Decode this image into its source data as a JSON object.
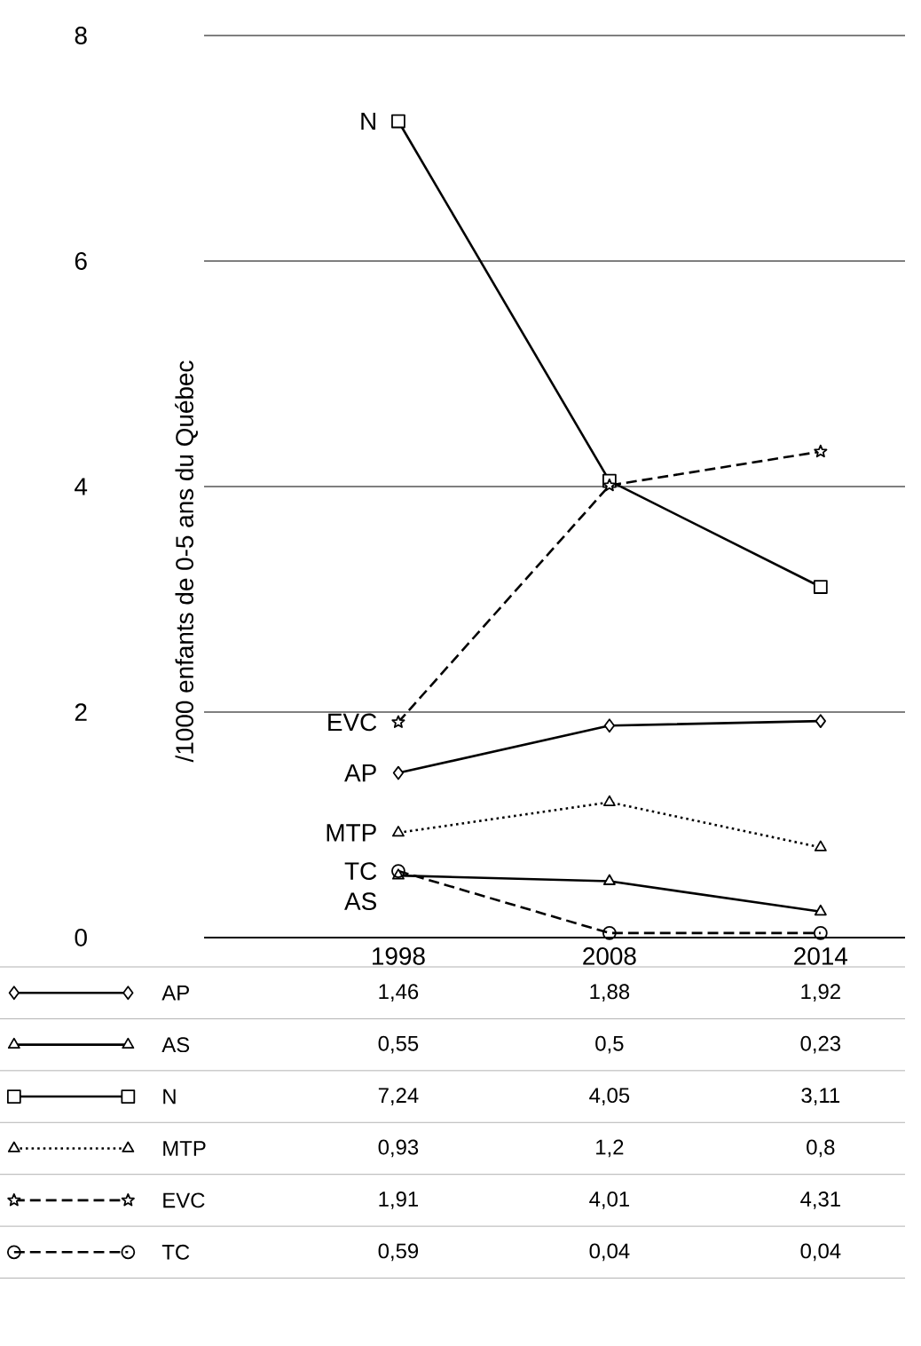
{
  "chart_data": {
    "type": "line",
    "ylabel": "/1000 enfants de 0-5 ans du Québec",
    "categories": [
      "1998",
      "2008",
      "2014"
    ],
    "ylim": [
      0,
      8
    ],
    "yticks": [
      0,
      2,
      4,
      6,
      8
    ],
    "grid": "y",
    "legend": "bottom",
    "series": [
      {
        "name": "AP",
        "color": "#000000",
        "marker": "diamond",
        "line_style": "solid",
        "values": [
          1.46,
          1.88,
          1.92
        ],
        "value_labels": [
          "1,46",
          "1,88",
          "1,92"
        ]
      },
      {
        "name": "AS",
        "color": "#000000",
        "marker": "triangle",
        "line_style": "solid",
        "values": [
          0.55,
          0.5,
          0.23
        ],
        "value_labels": [
          "0,55",
          "0,5",
          "0,23"
        ]
      },
      {
        "name": "N",
        "color": "#000000",
        "marker": "square",
        "line_style": "solid",
        "values": [
          7.24,
          4.05,
          3.11
        ],
        "value_labels": [
          "7,24",
          "4,05",
          "3,11"
        ]
      },
      {
        "name": "MTP",
        "color": "#000000",
        "marker": "triangle",
        "line_style": "dotted",
        "values": [
          0.93,
          1.2,
          0.8
        ],
        "value_labels": [
          "0,93",
          "1,2",
          "0,8"
        ]
      },
      {
        "name": "EVC",
        "color": "#000000",
        "marker": "star",
        "line_style": "dashed",
        "values": [
          1.91,
          4.01,
          4.31
        ],
        "value_labels": [
          "1,91",
          "4,01",
          "4,31"
        ]
      },
      {
        "name": "TC",
        "color": "#000000",
        "marker": "circle",
        "line_style": "dashed",
        "values": [
          0.59,
          0.04,
          0.04
        ],
        "value_labels": [
          "0,59",
          "0,04",
          "0,04"
        ]
      }
    ]
  }
}
